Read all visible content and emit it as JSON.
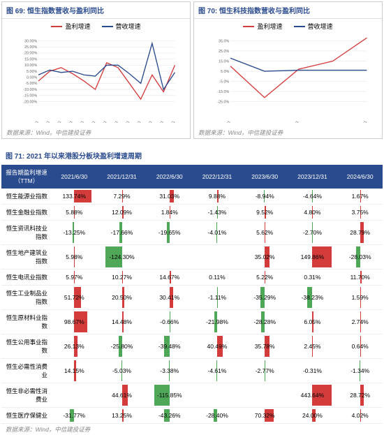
{
  "chart1": {
    "title": "图 69: 恒生指数营收与盈利同比",
    "legend": [
      {
        "label": "盈利增速",
        "color": "#d43c3c"
      },
      {
        "label": "营收增速",
        "color": "#2a4b8d"
      }
    ],
    "yticks": [
      "30.00%",
      "25.00%",
      "20.00%",
      "15.00%",
      "10.00%",
      "5.00%",
      "0.00%",
      "-5.00%",
      "-10.00%",
      "-15.00%",
      "-20.00%"
    ],
    "xticks": [
      "2011/12/31",
      "2012/12/31",
      "2013/12/31",
      "2014/12/31",
      "2015/12/31",
      "2016/12/31",
      "2017/12/31",
      "2018/12/31",
      "2019/12/31",
      "2020/12/31",
      "2021/12/31",
      "2022/12/31",
      "2023/12/31"
    ],
    "series": [
      {
        "color": "#d43c3c",
        "points": [
          -3,
          5,
          8,
          3,
          -3,
          -10,
          12,
          8,
          -5,
          -18,
          2,
          -12,
          10
        ]
      },
      {
        "color": "#2a4b8d",
        "points": [
          2,
          6,
          4,
          5,
          2,
          1,
          10,
          10,
          3,
          -5,
          28,
          -10,
          4
        ]
      }
    ],
    "ylim": [
      -20,
      30
    ],
    "source": "数据来源：Wind，中信建投证券"
  },
  "chart2": {
    "title": "图 70: 恒生科技指数营收与盈利同比",
    "legend": [
      {
        "label": "盈利增速",
        "color": "#d43c3c"
      },
      {
        "label": "营收增速",
        "color": "#2a4b8d"
      }
    ],
    "yticks": [
      "35.0%",
      "25.0%",
      "15.0%",
      "5.0%",
      "-5.0%",
      "-15.0%",
      "-25.0%"
    ],
    "xticks": [
      "2021/12/31",
      "2022/12/31",
      "2023/12/31"
    ],
    "series": [
      {
        "color": "#d43c3c",
        "points": [
          10,
          -21,
          7,
          15,
          38
        ]
      },
      {
        "color": "#2a4b8d",
        "points": [
          18,
          5,
          6,
          6,
          6
        ]
      }
    ],
    "ylim": [
      -25,
      35
    ],
    "source": "数据来源：Wind，中信建投证券"
  },
  "table": {
    "title": "图 71: 2021 年以来港股分板块盈利增速周期",
    "header": [
      "报告期盈利增速（TTM）",
      "2021/6/30",
      "2021/12/31",
      "2022/6/30",
      "2022/12/31",
      "2023/6/30",
      "2023/12/31",
      "2024/6/30"
    ],
    "pos_color": "#d43c3c",
    "neg_color": "#4fa858",
    "max_abs": 150,
    "rows": [
      {
        "name": "恒生能源业指数",
        "vals": [
          133.74,
          7.29,
          31.03,
          9.88,
          -8.94,
          -4.64,
          1.67
        ]
      },
      {
        "name": "恒生金融业指数",
        "vals": [
          5.88,
          12.09,
          1.84,
          -1.43,
          9.52,
          4.8,
          3.75
        ]
      },
      {
        "name": "恒生资讯科技业指数",
        "vals": [
          -13.25,
          -17.66,
          -19.65,
          -4.01,
          5.62,
          -2.7,
          28.79
        ],
        "suffix": [
          "%",
          "%",
          "%",
          "%",
          "%",
          "%",
          "9%"
        ]
      },
      {
        "name": "恒生地产建筑业指数",
        "vals": [
          5.98,
          -124.3,
          null,
          null,
          35.02,
          149.86,
          -28.03
        ],
        "text": [
          "5.98%",
          "-124.30%",
          "",
          "",
          "35.02%",
          "149.86%",
          "-28.03%"
        ]
      },
      {
        "name": "恒生电讯业指数",
        "vals": [
          5.97,
          10.27,
          14.67,
          0.11,
          5.22,
          0.31,
          11.7
        ]
      },
      {
        "name": "恒生工业制品业指数",
        "vals": [
          51.72,
          20.5,
          30.41,
          -1.11,
          -35.29,
          -38.23,
          1.59
        ]
      },
      {
        "name": "恒生原材料业指数",
        "vals": [
          98.67,
          14.48,
          -0.66,
          -21.98,
          -28.28,
          6.05,
          2.74
        ]
      },
      {
        "name": "恒生公用事业指数",
        "vals": [
          26.13,
          -25.8,
          -39.48,
          40.49,
          35.78,
          2.45,
          0.64
        ]
      },
      {
        "name": "恒生必需性消费业",
        "vals": [
          14.15,
          -5.03,
          -3.38,
          -4.61,
          -2.77,
          -0.31,
          -1.34
        ]
      },
      {
        "name": "恒生非必需性消费业",
        "vals": [
          null,
          44.61,
          -115.85,
          null,
          null,
          443.64,
          28.72
        ],
        "text": [
          "",
          "44.61%",
          "-115.85%",
          "",
          "",
          "443.64%",
          "28.72%"
        ]
      },
      {
        "name": "恒生医疗保健业",
        "vals": [
          -31.77,
          13.25,
          -43.26,
          -28.4,
          70.32,
          24.0,
          4.02
        ]
      }
    ],
    "source": "数据来源：Wind，中信建投证券"
  }
}
